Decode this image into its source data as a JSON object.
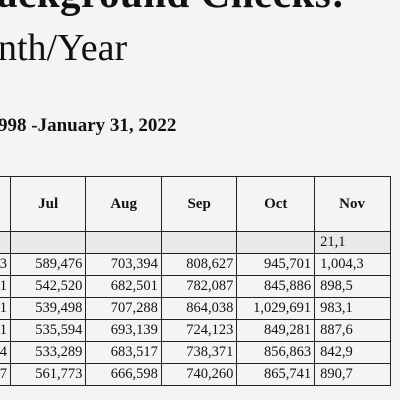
{
  "doc": {
    "title_fragment": "ackground Checks:",
    "subtitle_fragment": "nth/Year",
    "date_range_fragment": "998 -January 31, 2022"
  },
  "table": {
    "columns": [
      "",
      "Jul",
      "Aug",
      "Sep",
      "Oct",
      "Nov"
    ],
    "rows": [
      [
        "",
        "",
        "",
        "",
        "",
        "21,1"
      ],
      [
        "3",
        "589,476",
        "703,394",
        "808,627",
        "945,701",
        "1,004,3"
      ],
      [
        "1",
        "542,520",
        "682,501",
        "782,087",
        "845,886",
        "898,5"
      ],
      [
        "1",
        "539,498",
        "707,288",
        "864,038",
        "1,029,691",
        "983,1"
      ],
      [
        "1",
        "535,594",
        "693,139",
        "724,123",
        "849,281",
        "887,6"
      ],
      [
        "4",
        "533,289",
        "683,517",
        "738,371",
        "856,863",
        "842,9"
      ],
      [
        "7",
        "561,773",
        "666,598",
        "740,260",
        "865,741",
        "890,7"
      ]
    ]
  }
}
